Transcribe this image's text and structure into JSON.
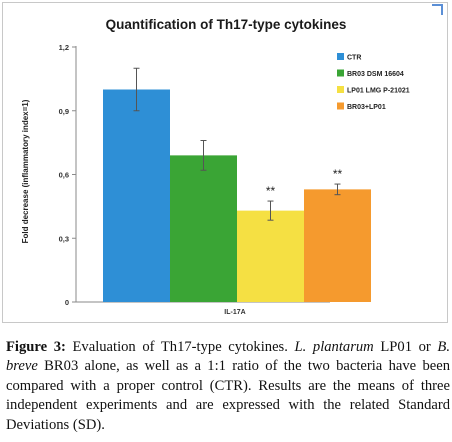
{
  "chart_data": {
    "type": "bar",
    "title": "Quantification of Th17-type cytokines",
    "xlabel": "",
    "ylabel": "Fold decrease (inflammatory index=1)",
    "categories": [
      "IL-17A"
    ],
    "ylim": [
      0,
      1.2
    ],
    "yticks": [
      "0",
      "0,3",
      "0,6",
      "0,9",
      "1,2"
    ],
    "ytick_values": [
      0,
      0.3,
      0.6,
      0.9,
      1.2
    ],
    "grid": false,
    "legend_position": "top-right",
    "series": [
      {
        "name": "CTR",
        "values": [
          1.0
        ],
        "error": [
          0.1
        ],
        "color": "#2e8fd6",
        "annotation": ""
      },
      {
        "name": "BR03 DSM 16604",
        "values": [
          0.69
        ],
        "error": [
          0.07
        ],
        "color": "#3aa535",
        "annotation": ""
      },
      {
        "name": "LP01 LMG P-21021",
        "values": [
          0.43
        ],
        "error": [
          0.045
        ],
        "color": "#f5e043",
        "annotation": "**"
      },
      {
        "name": "BR03+LP01",
        "values": [
          0.53
        ],
        "error": [
          0.025
        ],
        "color": "#f59a2e",
        "annotation": "**"
      }
    ]
  },
  "caption": {
    "lead": "Figure 3:",
    "text1": " Evaluation of Th17-type cytokines. ",
    "species1": "L. plantarum",
    "text2": " LP01 or ",
    "species2": "B. breve",
    "text3": " BR03 alone, as well as a 1:1 ratio of the two bacteria have been compared with a proper control (CTR). Results are the means of three independent experiments and are expressed with the related Standard Deviations (SD)."
  }
}
